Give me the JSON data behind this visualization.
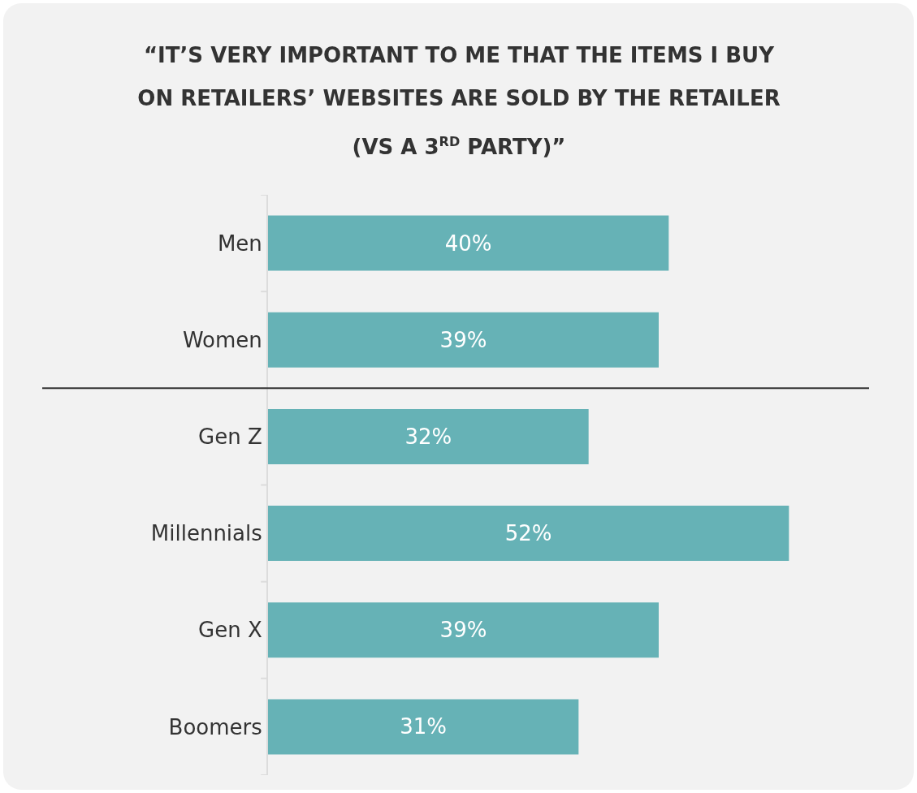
{
  "chart_data": {
    "type": "bar",
    "orientation": "horizontal",
    "title": "“IT’S VERY IMPORTANT TO ME THAT THE ITEMS I BUY ON RETAILERS’ WEBSITES ARE SOLD BY THE RETAILER (VS A 3$^{RD}$ PARTY)”",
    "categories": [
      "Men",
      "Women",
      "Gen Z",
      "Millennials",
      "Gen X",
      "Boomers"
    ],
    "values": [
      40,
      39,
      32,
      52,
      39,
      31
    ],
    "value_labels": [
      "40%",
      "39%",
      "32%",
      "52%",
      "39%",
      "31%"
    ],
    "color": "#66b2b6",
    "xlim": [
      0,
      60
    ],
    "tick_labels": "y"
  }
}
